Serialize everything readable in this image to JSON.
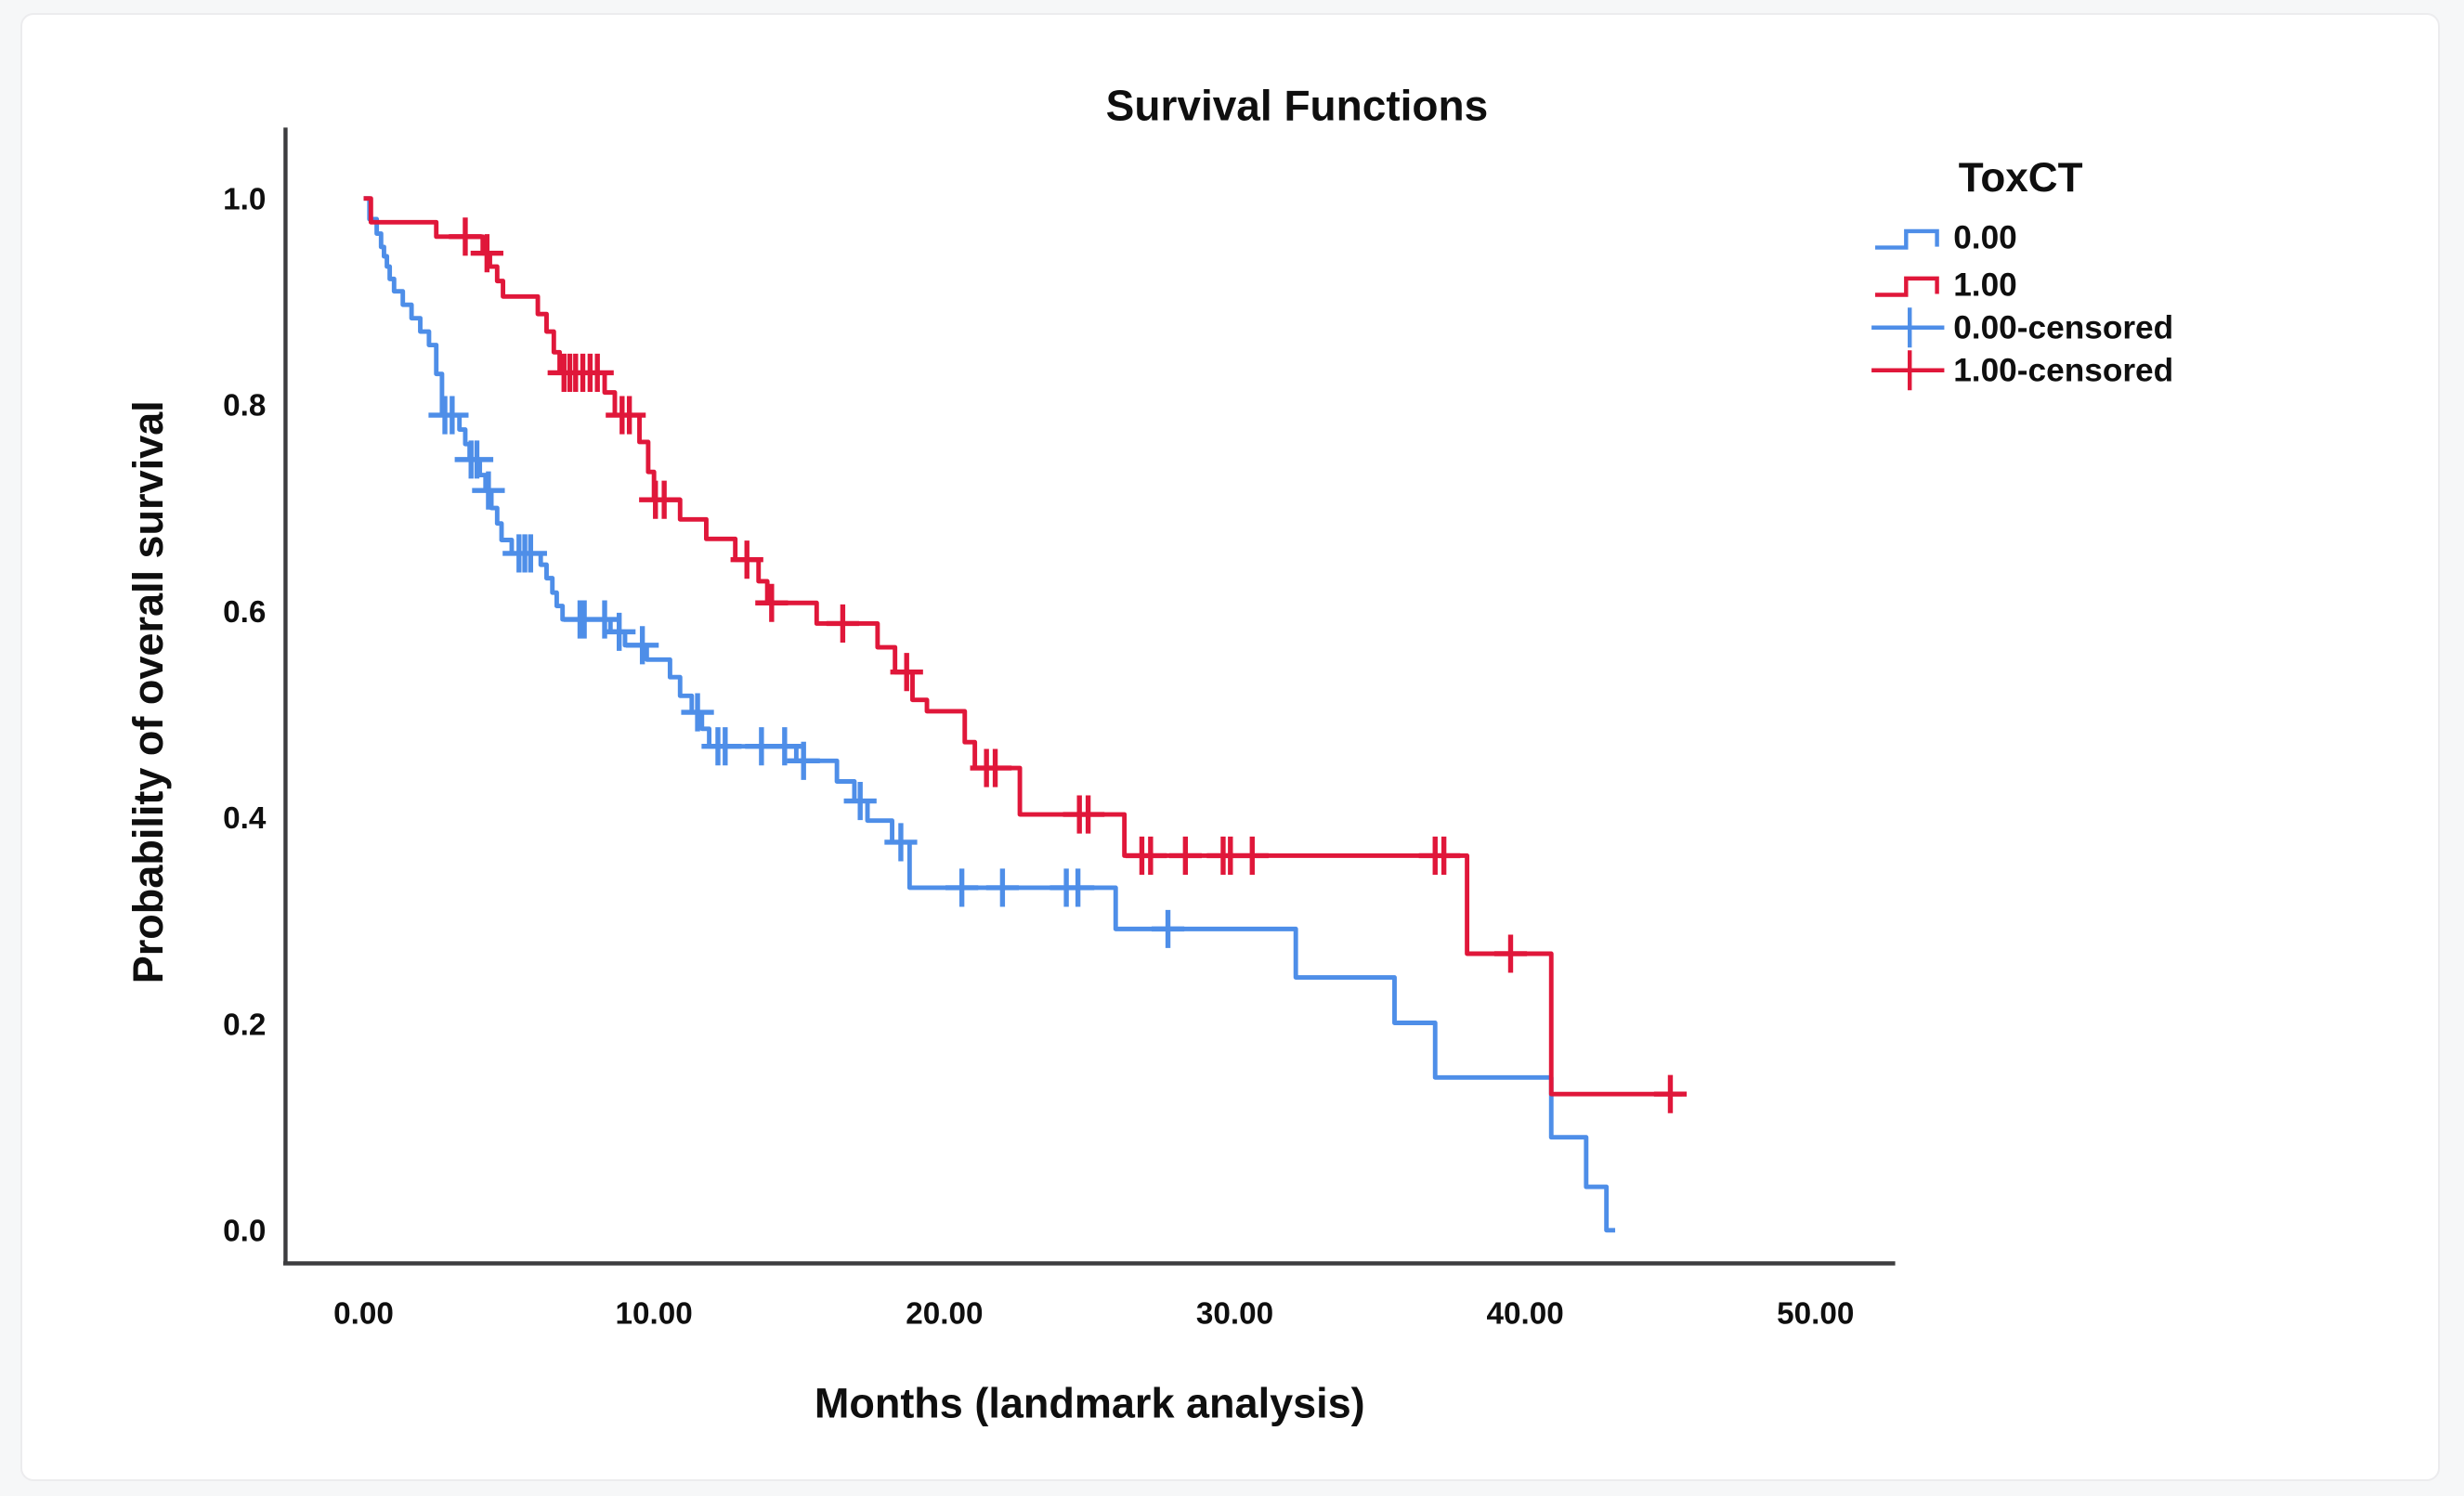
{
  "title": "Survival Functions",
  "colors": {
    "blue": "#4E8EE8",
    "red": "#E0173A",
    "axis": "#3d3d3f",
    "text": "#0f0f0f",
    "card_bg": "#ffffff",
    "page_bg": "#f6f7f8",
    "card_border": "#ececee"
  },
  "legend": {
    "title": "ToxCT",
    "entries": [
      {
        "label": "0.00",
        "color_key": "blue",
        "glyph": "step-line"
      },
      {
        "label": "1.00",
        "color_key": "red",
        "glyph": "step-line"
      },
      {
        "label": "0.00-censored",
        "color_key": "blue",
        "glyph": "plus-line"
      },
      {
        "label": "1.00-censored",
        "color_key": "red",
        "glyph": "plus-line"
      }
    ]
  },
  "chart_data": {
    "type": "line",
    "subtype": "kaplan_meier_step",
    "title": "Survival Functions",
    "xlabel": "Months (landmark analysis)",
    "ylabel": "Probability of overall survival",
    "xlim": [
      -2.7,
      52.7
    ],
    "ylim": [
      -0.032,
      1.068
    ],
    "grid": false,
    "legend_position": "outside-upper-right",
    "x_ticks": {
      "values": [
        0,
        10,
        20,
        30,
        40,
        50
      ],
      "labels": [
        "0.00",
        "10.00",
        "20.00",
        "30.00",
        "40.00",
        "50.00"
      ]
    },
    "y_ticks": {
      "values": [
        0.0,
        0.2,
        0.4,
        0.6,
        0.8,
        1.0
      ],
      "labels": [
        "0.0",
        "0.2",
        "0.4",
        "0.6",
        "0.8",
        "1.0"
      ]
    },
    "series": [
      {
        "name": "0.00",
        "color_key": "blue",
        "steps": [
          [
            0,
            1.0
          ],
          [
            0.2,
            0.98
          ],
          [
            0.45,
            0.966
          ],
          [
            0.6,
            0.953
          ],
          [
            0.7,
            0.944
          ],
          [
            0.8,
            0.934
          ],
          [
            0.9,
            0.922
          ],
          [
            1.05,
            0.91
          ],
          [
            1.35,
            0.897
          ],
          [
            1.65,
            0.884
          ],
          [
            1.95,
            0.871
          ],
          [
            2.25,
            0.858
          ],
          [
            2.5,
            0.83
          ],
          [
            2.7,
            0.79
          ],
          [
            3.3,
            0.776
          ],
          [
            3.5,
            0.762
          ],
          [
            3.65,
            0.747
          ],
          [
            4.0,
            0.732
          ],
          [
            4.2,
            0.717
          ],
          [
            4.4,
            0.7
          ],
          [
            4.6,
            0.685
          ],
          [
            4.75,
            0.669
          ],
          [
            5.1,
            0.656
          ],
          [
            6.1,
            0.645
          ],
          [
            6.3,
            0.632
          ],
          [
            6.5,
            0.618
          ],
          [
            6.65,
            0.605
          ],
          [
            6.85,
            0.592
          ],
          [
            8.5,
            0.58
          ],
          [
            9.0,
            0.567
          ],
          [
            9.75,
            0.553
          ],
          [
            10.55,
            0.536
          ],
          [
            10.9,
            0.518
          ],
          [
            11.3,
            0.502
          ],
          [
            11.65,
            0.486
          ],
          [
            11.9,
            0.469
          ],
          [
            14.9,
            0.455
          ],
          [
            16.3,
            0.435
          ],
          [
            16.9,
            0.416
          ],
          [
            17.35,
            0.397
          ],
          [
            18.2,
            0.376
          ],
          [
            18.8,
            0.332
          ],
          [
            25.9,
            0.292
          ],
          [
            32.1,
            0.245
          ],
          [
            35.5,
            0.201
          ],
          [
            36.9,
            0.148
          ],
          [
            40.9,
            0.09
          ],
          [
            42.1,
            0.042
          ],
          [
            42.8,
            0.0
          ],
          [
            43.1,
            0.0
          ]
        ],
        "censored": [
          [
            2.8,
            0.79
          ],
          [
            3.05,
            0.79
          ],
          [
            3.7,
            0.747
          ],
          [
            3.9,
            0.747
          ],
          [
            4.3,
            0.717
          ],
          [
            5.35,
            0.656
          ],
          [
            5.55,
            0.656
          ],
          [
            5.75,
            0.656
          ],
          [
            7.45,
            0.592
          ],
          [
            7.6,
            0.592
          ],
          [
            8.3,
            0.592
          ],
          [
            8.8,
            0.58
          ],
          [
            9.6,
            0.567
          ],
          [
            11.5,
            0.502
          ],
          [
            12.2,
            0.469
          ],
          [
            12.45,
            0.469
          ],
          [
            13.7,
            0.469
          ],
          [
            14.5,
            0.469
          ],
          [
            15.15,
            0.455
          ],
          [
            17.1,
            0.416
          ],
          [
            18.5,
            0.376
          ],
          [
            20.6,
            0.332
          ],
          [
            22.0,
            0.332
          ],
          [
            24.2,
            0.332
          ],
          [
            24.6,
            0.332
          ],
          [
            27.7,
            0.292
          ]
        ]
      },
      {
        "name": "1.00",
        "color_key": "red",
        "steps": [
          [
            0,
            1.0
          ],
          [
            0.25,
            0.977
          ],
          [
            2.5,
            0.963
          ],
          [
            4.1,
            0.947
          ],
          [
            4.35,
            0.934
          ],
          [
            4.6,
            0.92
          ],
          [
            4.8,
            0.905
          ],
          [
            6.0,
            0.888
          ],
          [
            6.3,
            0.871
          ],
          [
            6.55,
            0.851
          ],
          [
            6.75,
            0.831
          ],
          [
            8.3,
            0.812
          ],
          [
            8.65,
            0.79
          ],
          [
            9.5,
            0.764
          ],
          [
            9.8,
            0.735
          ],
          [
            10.0,
            0.708
          ],
          [
            10.9,
            0.689
          ],
          [
            11.8,
            0.67
          ],
          [
            12.8,
            0.65
          ],
          [
            13.6,
            0.629
          ],
          [
            13.9,
            0.608
          ],
          [
            15.6,
            0.588
          ],
          [
            17.7,
            0.565
          ],
          [
            18.3,
            0.541
          ],
          [
            18.9,
            0.514
          ],
          [
            19.4,
            0.503
          ],
          [
            20.7,
            0.473
          ],
          [
            21.05,
            0.448
          ],
          [
            22.6,
            0.403
          ],
          [
            26.2,
            0.363
          ],
          [
            38.0,
            0.268
          ],
          [
            40.9,
            0.132
          ],
          [
            45.4,
            0.132
          ]
        ],
        "censored": [
          [
            3.5,
            0.963
          ],
          [
            4.25,
            0.947
          ],
          [
            6.9,
            0.831
          ],
          [
            7.1,
            0.831
          ],
          [
            7.3,
            0.831
          ],
          [
            7.55,
            0.831
          ],
          [
            7.8,
            0.831
          ],
          [
            8.05,
            0.831
          ],
          [
            8.9,
            0.79
          ],
          [
            9.15,
            0.79
          ],
          [
            10.05,
            0.708
          ],
          [
            10.35,
            0.708
          ],
          [
            13.2,
            0.65
          ],
          [
            14.05,
            0.608
          ],
          [
            16.5,
            0.588
          ],
          [
            18.7,
            0.541
          ],
          [
            21.45,
            0.448
          ],
          [
            21.75,
            0.448
          ],
          [
            24.65,
            0.403
          ],
          [
            24.95,
            0.403
          ],
          [
            26.8,
            0.363
          ],
          [
            27.1,
            0.363
          ],
          [
            28.3,
            0.363
          ],
          [
            29.6,
            0.363
          ],
          [
            29.85,
            0.363
          ],
          [
            30.6,
            0.363
          ],
          [
            36.9,
            0.363
          ],
          [
            37.2,
            0.363
          ],
          [
            39.5,
            0.268
          ],
          [
            45.0,
            0.132
          ]
        ]
      }
    ]
  }
}
